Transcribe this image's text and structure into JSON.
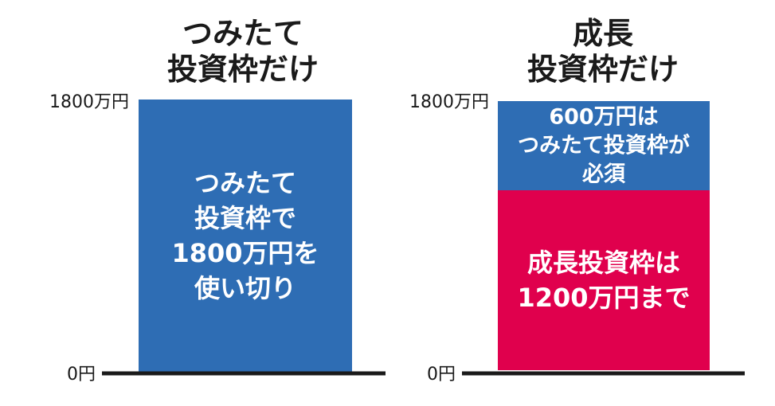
{
  "colors": {
    "blue": "#2e6db4",
    "red": "#e0004d",
    "axis": "#1a1a1a",
    "text": "#1a1a1a"
  },
  "chart_data": [
    {
      "type": "bar",
      "stacked": false,
      "title": [
        "つみたて",
        "投資枠だけ"
      ],
      "ylim": [
        0,
        1800
      ],
      "ytick_labels": {
        "top": "1800万円",
        "bottom": "0円"
      },
      "segments": [
        {
          "value": 1800,
          "color": "#2e6db4",
          "label": [
            "つみたて",
            "投資枠で",
            "1800万円を",
            "使い切り"
          ]
        }
      ]
    },
    {
      "type": "bar",
      "stacked": true,
      "title": [
        "成長",
        "投資枠だけ"
      ],
      "ylim": [
        0,
        1800
      ],
      "ytick_labels": {
        "top": "1800万円",
        "bottom": "0円"
      },
      "segments": [
        {
          "value": 1200,
          "color": "#e0004d",
          "label": [
            "成長投資枠は",
            "1200万円まで"
          ]
        },
        {
          "value": 600,
          "color": "#2e6db4",
          "label": [
            "600万円は",
            "つみたて投資枠が",
            "必須"
          ]
        }
      ]
    }
  ]
}
